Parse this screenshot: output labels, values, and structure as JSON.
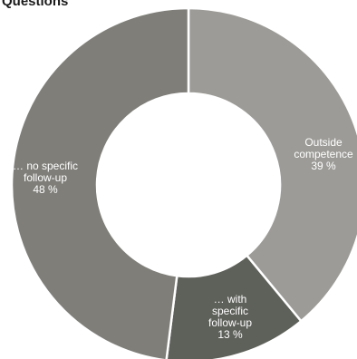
{
  "chart_data": {
    "type": "pie",
    "title": "Questions",
    "donut": true,
    "slices": [
      {
        "label_lines": [
          "Outside",
          "competence"
        ],
        "value": 39,
        "value_label": "39 %",
        "color": "#9c9b97"
      },
      {
        "label_lines": [
          "… with",
          "specific",
          "follow-up"
        ],
        "value": 13,
        "value_label": "13 %",
        "color": "#5e605a"
      },
      {
        "label_lines": [
          "… no specific",
          "follow-up"
        ],
        "value": 48,
        "value_label": "48 %",
        "color": "#7f7e79"
      }
    ]
  }
}
